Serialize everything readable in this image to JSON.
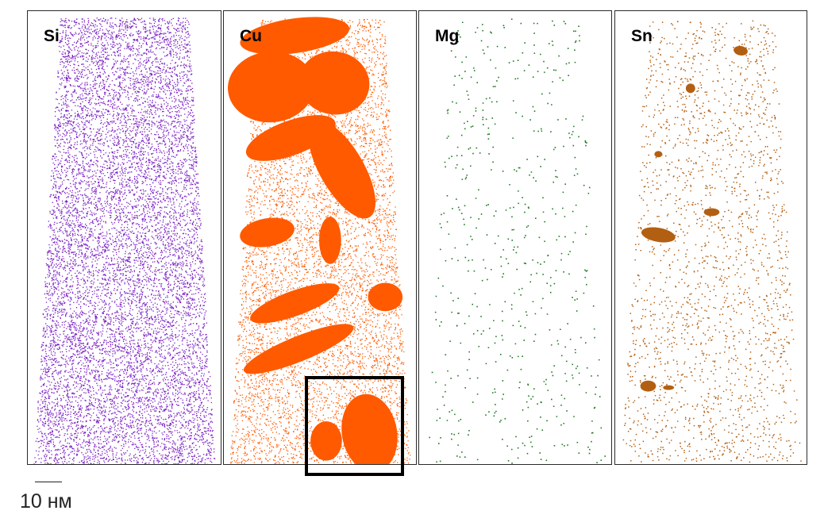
{
  "panels": [
    {
      "id": "si",
      "label": "Si",
      "color": "#7a1fc4"
    },
    {
      "id": "cu",
      "label": "Cu",
      "color": "#ff5a00"
    },
    {
      "id": "mg",
      "label": "Mg",
      "color": "#1f7a22"
    },
    {
      "id": "sn",
      "label": "Sn",
      "color": "#b35f12"
    }
  ],
  "scale_bar": {
    "label": "10 нм"
  }
}
